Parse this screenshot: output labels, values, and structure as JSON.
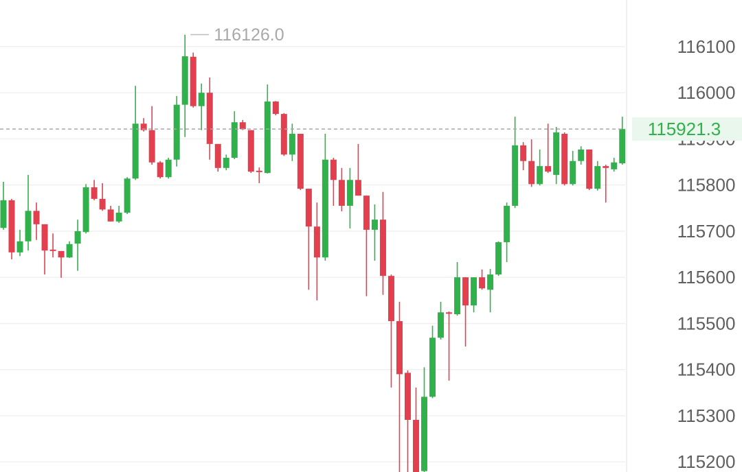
{
  "chart_data": {
    "type": "candlestick",
    "up_color": "#30b14b",
    "down_color": "#e2404f",
    "grid": true,
    "ylim": [
      115178,
      116201
    ],
    "yticks": [
      115200,
      115300,
      115400,
      115500,
      115600,
      115700,
      115800,
      115900,
      116000,
      116100
    ],
    "max_annotation": {
      "value": 116126,
      "label": "116126.0"
    },
    "last_price": 115921.3,
    "open": [
      115707,
      115767,
      115654,
      115678,
      115744,
      115715,
      115660,
      115657,
      115643,
      115673,
      115698,
      115795,
      115770,
      115747,
      115721,
      115740,
      115814,
      115933,
      115919,
      115849,
      115817,
      115855,
      115974,
      116078,
      115971,
      116000,
      115889,
      115837,
      115859,
      115936,
      115919,
      115831,
      115826,
      115981,
      115954,
      115866,
      115911,
      115792,
      115710,
      115643,
      115855,
      115811,
      115755,
      115811,
      115777,
      115703,
      115725,
      115603,
      115505,
      115393,
      115291,
      115180,
      115341,
      115469,
      115524,
      115520,
      115600,
      115539,
      115600,
      115573,
      115606,
      115676,
      115755,
      115886,
      115852,
      115802,
      115841,
      115822,
      115911,
      115802,
      115852,
      115877,
      115792,
      115841,
      115834,
      115847
    ],
    "high": [
      115807,
      115770,
      115703,
      115822,
      115762,
      115715,
      115695,
      115657,
      115678,
      115725,
      115802,
      115811,
      115804,
      115755,
      115755,
      115817,
      116015,
      115945,
      115971,
      115852,
      115859,
      115993,
      116126,
      116087,
      116020,
      116033,
      115889,
      115866,
      115960,
      115941,
      115919,
      115838,
      116018,
      115982,
      115956,
      115933,
      115911,
      115792,
      115762,
      115911,
      115859,
      115837,
      115837,
      115889,
      115777,
      115758,
      115785,
      115606,
      115547,
      115398,
      115361,
      115405,
      115495,
      115547,
      115526,
      115633,
      115600,
      115600,
      115617,
      115618,
      115678,
      115762,
      115948,
      115893,
      115899,
      115877,
      115933,
      115926,
      115914,
      115874,
      115884,
      115877,
      115852,
      115844,
      115859,
      115948
    ],
    "low": [
      115703,
      115639,
      115646,
      115658,
      115681,
      115606,
      115643,
      115599,
      115642,
      115614,
      115695,
      115767,
      115744,
      115721,
      115718,
      115737,
      115811,
      115916,
      115844,
      115814,
      115814,
      115840,
      115904,
      115968,
      115919,
      115855,
      115829,
      115832,
      115856,
      115919,
      115826,
      115804,
      115825,
      115951,
      115863,
      115852,
      115789,
      115573,
      115550,
      115636,
      115755,
      115743,
      115706,
      115777,
      115559,
      115636,
      115562,
      115361,
      115170,
      115170,
      115170,
      115170,
      115338,
      115465,
      115376,
      115517,
      115450,
      115524,
      115573,
      115524,
      115603,
      115633,
      115750,
      115832,
      115796,
      115799,
      115826,
      115802,
      115799,
      115799,
      115844,
      115789,
      115788,
      115762,
      115829,
      115844
    ],
    "close": [
      115767,
      115654,
      115678,
      115744,
      115715,
      115658,
      115657,
      115643,
      115672,
      115700,
      115795,
      115770,
      115747,
      115721,
      115740,
      115814,
      115933,
      115919,
      115849,
      115817,
      115855,
      115974,
      116079,
      115971,
      116000,
      115889,
      115837,
      115859,
      115936,
      115921,
      115829,
      115828,
      115981,
      115954,
      115866,
      115911,
      115792,
      115710,
      115643,
      115855,
      115811,
      115755,
      115811,
      115777,
      115703,
      115725,
      115603,
      115505,
      115390,
      115291,
      115175,
      115341,
      115469,
      115524,
      115521,
      115600,
      115539,
      115600,
      115576,
      115606,
      115676,
      115755,
      115886,
      115852,
      115802,
      115841,
      115829,
      115914,
      115802,
      115852,
      115877,
      115792,
      115841,
      115837,
      115849,
      115921.3
    ]
  }
}
